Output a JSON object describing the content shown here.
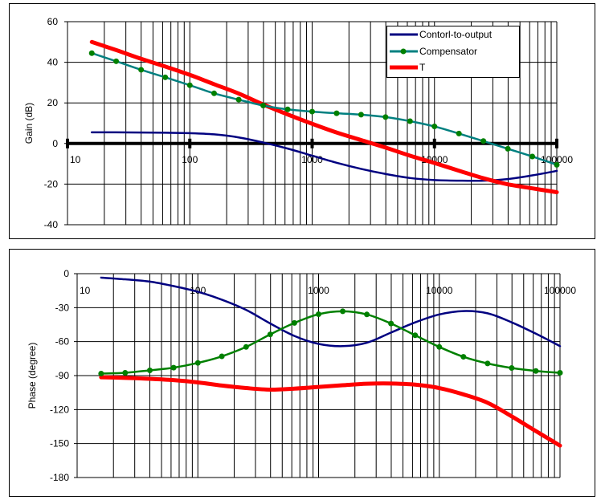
{
  "colors": {
    "control": "#000080",
    "comp_line_gain": "#008080",
    "comp_line_phase": "#008000",
    "comp_marker": "#008000",
    "T": "#ff0000"
  },
  "chart_data": [
    {
      "type": "line",
      "title": "",
      "xlabel": "",
      "ylabel": "Gain (dB)",
      "xscale": "log",
      "xlim": [
        10,
        100000
      ],
      "ylim": [
        -40,
        60
      ],
      "xticks": [
        "10",
        "100",
        "1000",
        "10000",
        "100000"
      ],
      "yticks": [
        "60",
        "40",
        "20",
        "0",
        "-20",
        "-40"
      ],
      "grid": true,
      "legend": "top-right",
      "x": [
        15.8,
        25,
        40,
        63,
        100,
        158,
        251,
        398,
        631,
        1000,
        1585,
        2512,
        3981,
        6310,
        10000,
        15849,
        25119,
        39811,
        63096,
        100000
      ],
      "series": [
        {
          "name": "Contorl-to-output",
          "values": [
            5.5,
            5.5,
            5.4,
            5.3,
            5.1,
            4.5,
            3,
            0.5,
            -2.5,
            -6,
            -9.5,
            -12.5,
            -15,
            -17,
            -18,
            -18.3,
            -18.3,
            -17.5,
            -15.7,
            -13.5
          ]
        },
        {
          "name": "Compensator",
          "values": [
            44.5,
            40.5,
            36.3,
            32.6,
            28.7,
            24.7,
            21.6,
            18.7,
            16.8,
            15.7,
            14.9,
            14.2,
            13,
            11,
            8.4,
            4.9,
            1.2,
            -2.6,
            -6.4,
            -10.5
          ]
        },
        {
          "name": "T",
          "values": [
            50,
            46,
            41.7,
            37.9,
            33.8,
            29.2,
            24.6,
            19.2,
            14.3,
            9.7,
            5.4,
            1.7,
            -2,
            -6,
            -9.6,
            -13.4,
            -17.1,
            -20.1,
            -22.1,
            -24
          ]
        }
      ]
    },
    {
      "type": "line",
      "title": "",
      "xlabel": "",
      "ylabel": "Phase (degree)",
      "xscale": "log",
      "xlim": [
        10,
        100000
      ],
      "ylim": [
        -180,
        0
      ],
      "xticks": [
        "10",
        "100",
        "1000",
        "10000",
        "100000"
      ],
      "yticks": [
        "0",
        "-30",
        "-60",
        "-90",
        "-120",
        "-150",
        "-180"
      ],
      "grid": true,
      "legend": "none",
      "x": [
        15.8,
        25,
        40,
        63,
        100,
        158,
        251,
        398,
        631,
        1000,
        1585,
        2512,
        3981,
        6310,
        10000,
        15849,
        25119,
        39811,
        63096,
        100000
      ],
      "series": [
        {
          "name": "Contorl-to-output",
          "values": [
            -3.5,
            -5,
            -7,
            -11,
            -16,
            -23,
            -32,
            -44,
            -55,
            -62,
            -64,
            -61,
            -52,
            -43,
            -36,
            -33,
            -35,
            -43,
            -53,
            -64
          ]
        },
        {
          "name": "Compensator",
          "values": [
            -88.2,
            -87.5,
            -85.4,
            -83,
            -78.8,
            -73,
            -64.7,
            -53.6,
            -43.5,
            -35.8,
            -33.2,
            -36,
            -44,
            -54.4,
            -64.7,
            -73.4,
            -79.3,
            -83.3,
            -85.9,
            -87.5
          ]
        },
        {
          "name": "T",
          "values": [
            -91.5,
            -92,
            -92.8,
            -94,
            -96,
            -98.8,
            -101,
            -102.4,
            -101.5,
            -100,
            -98.5,
            -97.2,
            -97,
            -98,
            -101,
            -106.6,
            -114,
            -126,
            -139,
            -151.8
          ]
        }
      ]
    }
  ]
}
